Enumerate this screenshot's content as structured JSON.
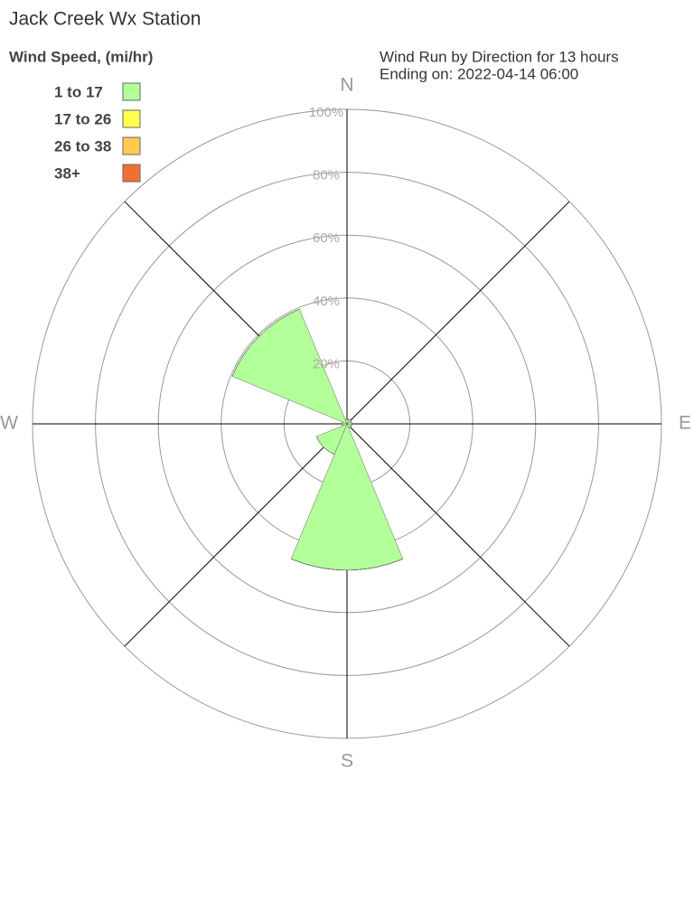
{
  "chart_data": {
    "type": "windrose",
    "title": "Jack Creek Wx Station",
    "subtitle": [
      "Wind Run by Direction for 13 hours",
      "Ending on: 2022-04-14 06:00"
    ],
    "legend_title": "Wind Speed, (mi/hr)",
    "categories": [
      "N",
      null,
      "E",
      null,
      "S",
      null,
      "W",
      null
    ],
    "series": [
      {
        "name": "1 to 17",
        "color": "#b3ff99",
        "values": [
          1.5,
          1.5,
          1.5,
          1.5,
          46.5,
          10.5,
          1.5,
          39.5
        ]
      },
      {
        "name": "17 to 26",
        "color": "#ffff4d",
        "values": [
          0,
          0,
          0,
          0,
          0,
          0,
          0,
          0
        ]
      },
      {
        "name": "26 to 38",
        "color": "#ffcc4d",
        "values": [
          0,
          0,
          0,
          0,
          0,
          0,
          0,
          0
        ]
      },
      {
        "name": "38+",
        "color": "#f07030",
        "values": [
          0,
          0,
          0,
          0,
          0,
          0,
          0,
          0
        ]
      }
    ],
    "rlim": [
      0,
      100
    ],
    "rticks": [
      {
        "value": 20,
        "label": "20%"
      },
      {
        "value": 40,
        "label": "40%"
      },
      {
        "value": 60,
        "label": "60%"
      },
      {
        "value": 80,
        "label": "80%"
      },
      {
        "value": 100,
        "label": "100%"
      }
    ],
    "grid": true
  }
}
